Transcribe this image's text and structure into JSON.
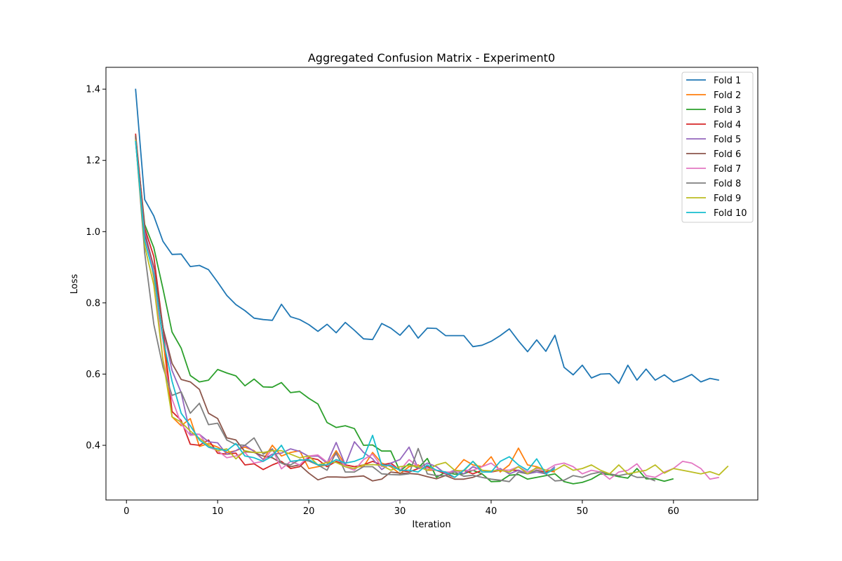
{
  "chart_data": {
    "type": "line",
    "title": "Aggregated Confusion Matrix - Experiment0",
    "xlabel": "Iteration",
    "ylabel": "Loss",
    "xlim": [
      -2.25,
      69.25
    ],
    "ylim": [
      0.2465,
      1.4613
    ],
    "xticks": [
      0,
      10,
      20,
      30,
      40,
      50,
      60
    ],
    "yticks": [
      0.4,
      0.6,
      0.8,
      1.0,
      1.2,
      1.4
    ],
    "ytick_labels": [
      "0.4",
      "0.6",
      "0.8",
      "1.0",
      "1.2",
      "1.4"
    ],
    "grid": false,
    "legend_position": "upper right",
    "series": [
      {
        "name": "Fold 1",
        "color": "#1f77b4",
        "x_start": 1,
        "y": [
          1.401,
          1.09,
          1.044,
          0.973,
          0.936,
          0.937,
          0.902,
          0.905,
          0.893,
          0.858,
          0.821,
          0.795,
          0.778,
          0.757,
          0.753,
          0.751,
          0.796,
          0.761,
          0.753,
          0.739,
          0.72,
          0.74,
          0.716,
          0.745,
          0.723,
          0.699,
          0.697,
          0.742,
          0.729,
          0.709,
          0.737,
          0.701,
          0.729,
          0.728,
          0.708,
          0.708,
          0.708,
          0.677,
          0.681,
          0.692,
          0.708,
          0.727,
          0.693,
          0.663,
          0.696,
          0.664,
          0.709,
          0.619,
          0.598,
          0.625,
          0.589,
          0.6,
          0.601,
          0.574,
          0.625,
          0.583,
          0.614,
          0.583,
          0.598,
          0.578,
          0.587,
          0.599,
          0.578,
          0.588,
          0.583
        ]
      },
      {
        "name": "Fold 2",
        "color": "#ff7f0e",
        "x_start": 1,
        "y": [
          1.268,
          1.01,
          0.87,
          0.7,
          0.48,
          0.455,
          0.475,
          0.397,
          0.405,
          0.395,
          0.38,
          0.385,
          0.395,
          0.385,
          0.36,
          0.4,
          0.37,
          0.38,
          0.385,
          0.335,
          0.34,
          0.345,
          0.385,
          0.345,
          0.34,
          0.34,
          0.38,
          0.35,
          0.34,
          0.32,
          0.34,
          0.345,
          0.33,
          0.33,
          0.32,
          0.33,
          0.36,
          0.345,
          0.34,
          0.368,
          0.325,
          0.345,
          0.392,
          0.345,
          0.34,
          0.33,
          0.325
        ]
      },
      {
        "name": "Fold 3",
        "color": "#2ca02c",
        "x_start": 1,
        "y": [
          1.265,
          1.02,
          0.955,
          0.84,
          0.718,
          0.673,
          0.596,
          0.578,
          0.583,
          0.613,
          0.603,
          0.595,
          0.567,
          0.586,
          0.564,
          0.563,
          0.576,
          0.548,
          0.551,
          0.532,
          0.516,
          0.464,
          0.45,
          0.455,
          0.447,
          0.4,
          0.401,
          0.384,
          0.384,
          0.328,
          0.348,
          0.336,
          0.363,
          0.31,
          0.325,
          0.319,
          0.32,
          0.33,
          0.32,
          0.298,
          0.299,
          0.316,
          0.318,
          0.305,
          0.31,
          0.315,
          0.32,
          0.298,
          0.292,
          0.296,
          0.305,
          0.32,
          0.318,
          0.312,
          0.308,
          0.335,
          0.306,
          0.306,
          0.299,
          0.306
        ]
      },
      {
        "name": "Fold 4",
        "color": "#d62728",
        "x_start": 1,
        "y": [
          1.275,
          1.01,
          0.93,
          0.73,
          0.495,
          0.47,
          0.403,
          0.4,
          0.415,
          0.378,
          0.375,
          0.378,
          0.345,
          0.348,
          0.332,
          0.345,
          0.355,
          0.335,
          0.34,
          0.365,
          0.36,
          0.34,
          0.355,
          0.345,
          0.34,
          0.345,
          0.355,
          0.345,
          0.35,
          0.33,
          0.325,
          0.335,
          0.34,
          0.33,
          0.32,
          0.31,
          0.33,
          0.32,
          0.33,
          0.325,
          0.33,
          0.33,
          0.33,
          0.32,
          0.33,
          0.325,
          0.33
        ]
      },
      {
        "name": "Fold 5",
        "color": "#9467bd",
        "x_start": 1,
        "y": [
          1.262,
          1.0,
          0.9,
          0.73,
          0.61,
          0.548,
          0.432,
          0.431,
          0.41,
          0.407,
          0.375,
          0.385,
          0.4,
          0.383,
          0.36,
          0.375,
          0.378,
          0.39,
          0.383,
          0.369,
          0.37,
          0.35,
          0.408,
          0.345,
          0.41,
          0.38,
          0.362,
          0.332,
          0.35,
          0.36,
          0.395,
          0.335,
          0.35,
          0.34,
          0.32,
          0.33,
          0.32,
          0.34,
          0.33,
          0.325,
          0.335,
          0.32,
          0.33,
          0.32,
          0.325,
          0.32,
          0.34
        ]
      },
      {
        "name": "Fold 6",
        "color": "#8c564b",
        "x_start": 1,
        "y": [
          1.27,
          0.99,
          0.9,
          0.73,
          0.63,
          0.585,
          0.578,
          0.557,
          0.49,
          0.475,
          0.421,
          0.415,
          0.382,
          0.38,
          0.37,
          0.365,
          0.35,
          0.34,
          0.345,
          0.322,
          0.303,
          0.311,
          0.311,
          0.31,
          0.312,
          0.314,
          0.3,
          0.305,
          0.325,
          0.322,
          0.321,
          0.319,
          0.312,
          0.306,
          0.315,
          0.305,
          0.305,
          0.31,
          0.32
        ]
      },
      {
        "name": "Fold 7",
        "color": "#e377c2",
        "x_start": 1,
        "y": [
          1.255,
          0.98,
          0.89,
          0.64,
          0.53,
          0.46,
          0.428,
          0.431,
          0.395,
          0.385,
          0.365,
          0.37,
          0.38,
          0.35,
          0.355,
          0.39,
          0.334,
          0.355,
          0.345,
          0.37,
          0.373,
          0.353,
          0.375,
          0.34,
          0.33,
          0.36,
          0.375,
          0.34,
          0.345,
          0.33,
          0.36,
          0.34,
          0.335,
          0.33,
          0.325,
          0.325,
          0.33,
          0.33,
          0.34,
          0.35,
          0.33,
          0.33,
          0.34,
          0.325,
          0.335,
          0.33,
          0.345,
          0.35,
          0.34,
          0.32,
          0.33,
          0.325,
          0.305,
          0.325,
          0.33,
          0.348,
          0.315,
          0.31,
          0.325,
          0.335,
          0.355,
          0.35,
          0.335,
          0.305,
          0.31
        ]
      },
      {
        "name": "Fold 8",
        "color": "#7f7f7f",
        "x_start": 1,
        "y": [
          1.26,
          0.94,
          0.74,
          0.62,
          0.54,
          0.55,
          0.49,
          0.518,
          0.458,
          0.462,
          0.415,
          0.402,
          0.4,
          0.421,
          0.375,
          0.39,
          0.35,
          0.345,
          0.36,
          0.356,
          0.345,
          0.33,
          0.38,
          0.325,
          0.325,
          0.34,
          0.34,
          0.32,
          0.318,
          0.317,
          0.32,
          0.391,
          0.32,
          0.315,
          0.315,
          0.325,
          0.313,
          0.316,
          0.31,
          0.305,
          0.302,
          0.298,
          0.325,
          0.32,
          0.33,
          0.32,
          0.3,
          0.302,
          0.315,
          0.31,
          0.32,
          0.325,
          0.32,
          0.315,
          0.32,
          0.31,
          0.31,
          0.3
        ]
      },
      {
        "name": "Fold 9",
        "color": "#bcbd22",
        "x_start": 1,
        "y": [
          1.258,
          0.96,
          0.85,
          0.64,
          0.48,
          0.465,
          0.44,
          0.42,
          0.4,
          0.385,
          0.39,
          0.362,
          0.385,
          0.38,
          0.38,
          0.385,
          0.385,
          0.375,
          0.365,
          0.37,
          0.345,
          0.352,
          0.352,
          0.34,
          0.335,
          0.345,
          0.346,
          0.344,
          0.33,
          0.34,
          0.343,
          0.34,
          0.33,
          0.345,
          0.352,
          0.33,
          0.328,
          0.355,
          0.33,
          0.328,
          0.33,
          0.325,
          0.34,
          0.32,
          0.338,
          0.33,
          0.33,
          0.345,
          0.33,
          0.335,
          0.345,
          0.33,
          0.32,
          0.345,
          0.32,
          0.325,
          0.33,
          0.345,
          0.322,
          0.335,
          0.33,
          0.325,
          0.32,
          0.326,
          0.317,
          0.342
        ]
      },
      {
        "name": "Fold 10",
        "color": "#17becf",
        "x_start": 1,
        "y": [
          1.255,
          0.975,
          0.88,
          0.7,
          0.58,
          0.49,
          0.455,
          0.415,
          0.395,
          0.39,
          0.385,
          0.405,
          0.37,
          0.365,
          0.355,
          0.37,
          0.4,
          0.355,
          0.358,
          0.36,
          0.345,
          0.345,
          0.36,
          0.35,
          0.355,
          0.365,
          0.428,
          0.345,
          0.343,
          0.33,
          0.33,
          0.325,
          0.345,
          0.33,
          0.325,
          0.31,
          0.33,
          0.355,
          0.325,
          0.325,
          0.355,
          0.368,
          0.345,
          0.33,
          0.362,
          0.32,
          0.335
        ]
      }
    ]
  }
}
